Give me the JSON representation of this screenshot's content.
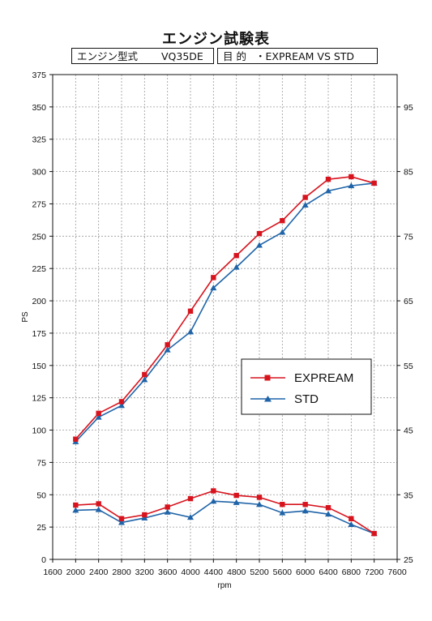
{
  "header": {
    "title": "エンジン試験表",
    "engine_label": "エンジン型式",
    "engine_value": "VQ35DE",
    "purpose_label": "目 的",
    "purpose_value": "・EXPREAM VS STD"
  },
  "colors": {
    "expream": "#d7141e",
    "std": "#1f64a8",
    "grid": "#9a9a9a"
  },
  "chart_data": {
    "type": "line",
    "xlabel": "rpm",
    "ylabel": "PS",
    "xlim": [
      1600,
      7600
    ],
    "ylim": [
      0,
      375
    ],
    "y2lim": [
      25,
      100
    ],
    "x_ticks": [
      1600,
      2000,
      2400,
      2800,
      3200,
      3600,
      4000,
      4400,
      4800,
      5200,
      5600,
      6000,
      6400,
      6800,
      7200,
      7600
    ],
    "y_ticks": [
      0,
      25,
      50,
      75,
      100,
      125,
      150,
      175,
      200,
      225,
      250,
      275,
      300,
      325,
      350,
      375
    ],
    "y2_ticks": [
      25,
      35,
      45,
      55,
      65,
      75,
      85,
      95
    ],
    "grid": true,
    "legend_position": "right-center",
    "x": [
      2000,
      2400,
      2800,
      3200,
      3600,
      4000,
      4400,
      4800,
      5200,
      5600,
      6000,
      6400,
      6800,
      7200
    ],
    "series": [
      {
        "name": "EXPREAM",
        "axis": "left",
        "marker": "square",
        "color": "#d7141e",
        "values": [
          93,
          113,
          122,
          143,
          166,
          192,
          218,
          235,
          252,
          262,
          280,
          294,
          296,
          291
        ]
      },
      {
        "name": "STD",
        "axis": "left",
        "marker": "triangle",
        "color": "#1f64a8",
        "values": [
          91,
          110,
          119,
          139,
          162,
          176,
          210,
          226,
          243,
          253,
          274,
          285,
          289,
          291
        ]
      },
      {
        "name": "EXPREAM",
        "axis": "right",
        "marker": "square",
        "color": "#d7141e",
        "legend": false,
        "values": [
          33.4,
          33.6,
          31.3,
          31.9,
          33.1,
          34.4,
          35.6,
          34.9,
          34.6,
          33.5,
          33.5,
          33.0,
          31.3,
          29.0
        ]
      },
      {
        "name": "STD",
        "axis": "right",
        "marker": "triangle",
        "color": "#1f64a8",
        "legend": false,
        "values": [
          32.6,
          32.7,
          30.7,
          31.4,
          32.3,
          31.5,
          34.0,
          33.8,
          33.5,
          32.2,
          32.5,
          32.0,
          30.4,
          29.0
        ]
      }
    ]
  }
}
